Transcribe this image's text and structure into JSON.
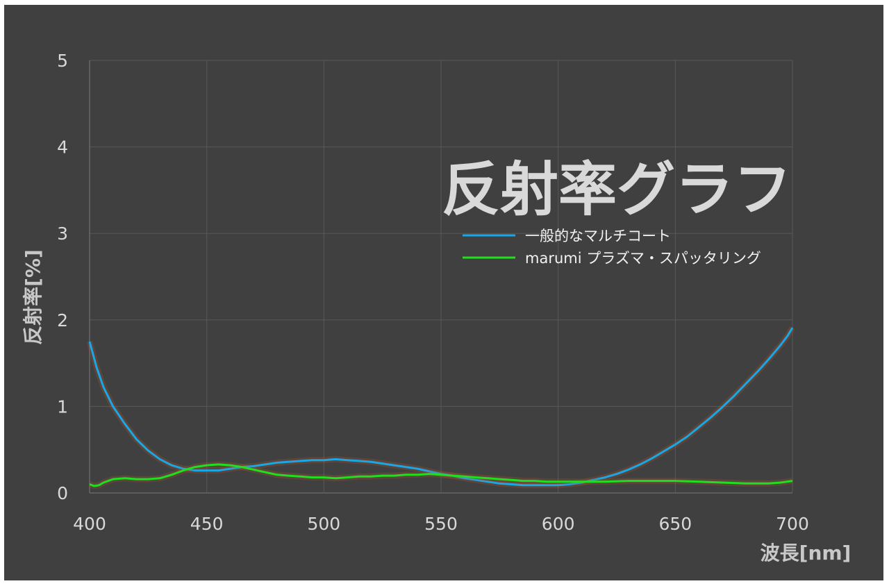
{
  "chart_data": {
    "type": "line",
    "title": "反射率グラフ",
    "xlabel": "波長[nm]",
    "ylabel": "反射率[%]",
    "xlim": [
      400,
      700
    ],
    "ylim": [
      0,
      5
    ],
    "xticks": [
      "400",
      "450",
      "500",
      "550",
      "600",
      "650",
      "700"
    ],
    "yticks": [
      "0",
      "1",
      "2",
      "3",
      "4",
      "5"
    ],
    "grid": true,
    "legend_position": "top-right",
    "series": [
      {
        "name": "一般的なマルチコート",
        "color": "#1aa7e6",
        "x": [
          400,
          403,
          406,
          410,
          415,
          420,
          425,
          430,
          435,
          440,
          445,
          450,
          455,
          460,
          465,
          470,
          475,
          480,
          485,
          490,
          495,
          500,
          505,
          510,
          515,
          520,
          525,
          530,
          535,
          540,
          545,
          550,
          555,
          560,
          565,
          570,
          575,
          580,
          585,
          590,
          595,
          600,
          605,
          610,
          615,
          620,
          625,
          630,
          635,
          640,
          645,
          650,
          655,
          660,
          665,
          670,
          675,
          680,
          685,
          690,
          695,
          698,
          700
        ],
        "y": [
          1.75,
          1.45,
          1.22,
          1.0,
          0.8,
          0.62,
          0.49,
          0.39,
          0.32,
          0.28,
          0.26,
          0.26,
          0.26,
          0.28,
          0.3,
          0.31,
          0.33,
          0.35,
          0.36,
          0.37,
          0.38,
          0.38,
          0.39,
          0.38,
          0.37,
          0.36,
          0.34,
          0.32,
          0.3,
          0.28,
          0.25,
          0.22,
          0.2,
          0.17,
          0.15,
          0.13,
          0.11,
          0.1,
          0.09,
          0.09,
          0.09,
          0.09,
          0.1,
          0.12,
          0.15,
          0.18,
          0.22,
          0.27,
          0.33,
          0.4,
          0.48,
          0.56,
          0.65,
          0.76,
          0.87,
          0.99,
          1.12,
          1.26,
          1.4,
          1.55,
          1.71,
          1.82,
          1.91
        ]
      },
      {
        "name": "marumi プラズマ・スパッタリング",
        "color": "#1ee01e",
        "x": [
          400,
          402,
          404,
          406,
          408,
          410,
          415,
          420,
          425,
          430,
          435,
          440,
          445,
          450,
          455,
          460,
          465,
          470,
          475,
          480,
          485,
          490,
          495,
          500,
          505,
          510,
          515,
          520,
          525,
          530,
          535,
          540,
          545,
          550,
          555,
          560,
          565,
          570,
          575,
          580,
          585,
          590,
          595,
          600,
          610,
          620,
          630,
          640,
          650,
          660,
          670,
          680,
          690,
          695,
          700
        ],
        "y": [
          0.1,
          0.08,
          0.09,
          0.12,
          0.14,
          0.16,
          0.17,
          0.16,
          0.16,
          0.17,
          0.21,
          0.26,
          0.3,
          0.32,
          0.33,
          0.32,
          0.3,
          0.27,
          0.24,
          0.21,
          0.2,
          0.19,
          0.18,
          0.18,
          0.17,
          0.18,
          0.19,
          0.19,
          0.2,
          0.2,
          0.21,
          0.21,
          0.22,
          0.21,
          0.2,
          0.19,
          0.18,
          0.17,
          0.16,
          0.15,
          0.14,
          0.14,
          0.13,
          0.13,
          0.13,
          0.13,
          0.14,
          0.14,
          0.14,
          0.13,
          0.12,
          0.11,
          0.11,
          0.12,
          0.14
        ]
      }
    ]
  }
}
